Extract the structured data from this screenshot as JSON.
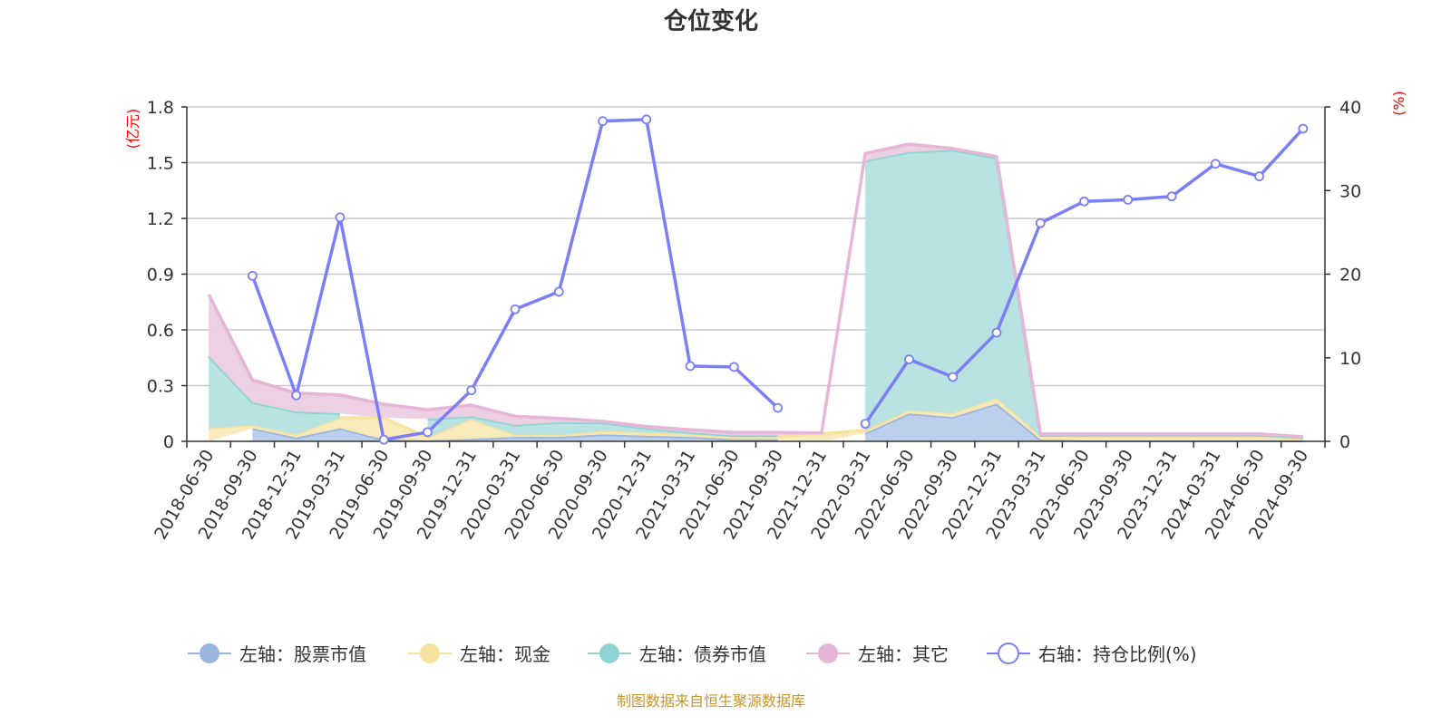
{
  "chart_data": {
    "type": "area",
    "title": "仓位变化",
    "left_unit": "(亿元)",
    "right_unit": "(%)",
    "categories": [
      "2018-06-30",
      "2018-09-30",
      "2018-12-31",
      "2019-03-31",
      "2019-06-30",
      "2019-09-30",
      "2019-12-31",
      "2020-03-31",
      "2020-06-30",
      "2020-09-30",
      "2020-12-31",
      "2021-03-31",
      "2021-06-30",
      "2021-09-30",
      "2021-12-31",
      "2022-03-31",
      "2022-06-30",
      "2022-09-30",
      "2022-12-31",
      "2023-03-31",
      "2023-06-30",
      "2023-09-30",
      "2023-12-31",
      "2024-03-31",
      "2024-06-30",
      "2024-09-30"
    ],
    "left_axis": {
      "range": [
        0,
        1.8
      ],
      "ticks": [
        "0",
        "0.3",
        "0.6",
        "0.9",
        "1.2",
        "1.5",
        "1.8"
      ]
    },
    "right_axis": {
      "range": [
        0,
        40
      ],
      "ticks": [
        "0",
        "10",
        "20",
        "30",
        "40"
      ]
    },
    "grid": true,
    "legend_position": "bottom",
    "series": [
      {
        "name": "左轴：股票市值",
        "axis": "left",
        "stack": true,
        "color": "#9bb5df",
        "fill": "#b8cceb",
        "values": [
          null,
          0.07,
          0.02,
          0.07,
          0.01,
          0.005,
          0.013,
          0.024,
          0.024,
          0.037,
          0.03,
          0.024,
          0.011,
          0.011,
          null,
          0.044,
          0.15,
          0.13,
          0.203,
          0.01,
          0.005,
          0.005,
          0.005,
          0.005,
          0.005,
          0.003
        ]
      },
      {
        "name": "左轴：现金",
        "axis": "left",
        "stack": true,
        "color": "#f6e3a0",
        "fill": "#f9eab8",
        "values": [
          0.07,
          0.017,
          0.017,
          0.057,
          0.117,
          0.015,
          0.107,
          0.011,
          0.011,
          0.019,
          0.018,
          0.013,
          0.013,
          0.013,
          0.04,
          0.016,
          0.018,
          0.022,
          0.029,
          0.02,
          0.02,
          0.02,
          0.02,
          0.02,
          0.02,
          0.012
        ]
      },
      {
        "name": "左轴：债券市值",
        "axis": "left",
        "stack": true,
        "color": "#8fd3d2",
        "fill": "#b5e0e1",
        "values": [
          0.39,
          0.123,
          0.123,
          0.023,
          null,
          0.1,
          0.015,
          0.052,
          0.068,
          0.044,
          0.022,
          0.011,
          0.008,
          0.008,
          null,
          1.45,
          1.389,
          1.416,
          1.293,
          0.003,
          0.01,
          0.01,
          0.01,
          0.01,
          0.01,
          0.005
        ]
      },
      {
        "name": "左轴：其它",
        "axis": "left",
        "stack": true,
        "color": "#e6b5d8",
        "fill": "#eccee3",
        "values": [
          0.33,
          0.12,
          0.1,
          0.1,
          0.073,
          0.05,
          0.06,
          0.048,
          0.021,
          0.008,
          0.01,
          0.015,
          0.016,
          0.016,
          0.005,
          0.04,
          0.043,
          0.008,
          0.008,
          0.007,
          0.005,
          0.005,
          0.005,
          0.005,
          0.005,
          0.005
        ]
      },
      {
        "name": "右轴：持仓比例(%)",
        "axis": "right",
        "stack": false,
        "color": "#7b7ef5",
        "values": [
          null,
          19.8,
          5.5,
          26.8,
          0.2,
          1.1,
          6.1,
          15.8,
          17.9,
          38.3,
          38.5,
          9.0,
          8.9,
          4.0,
          null,
          2.1,
          9.8,
          7.7,
          13.0,
          26.1,
          28.7,
          28.9,
          29.3,
          33.2,
          31.7,
          37.4
        ]
      }
    ]
  },
  "footer": "制图数据来自恒生聚源数据库"
}
